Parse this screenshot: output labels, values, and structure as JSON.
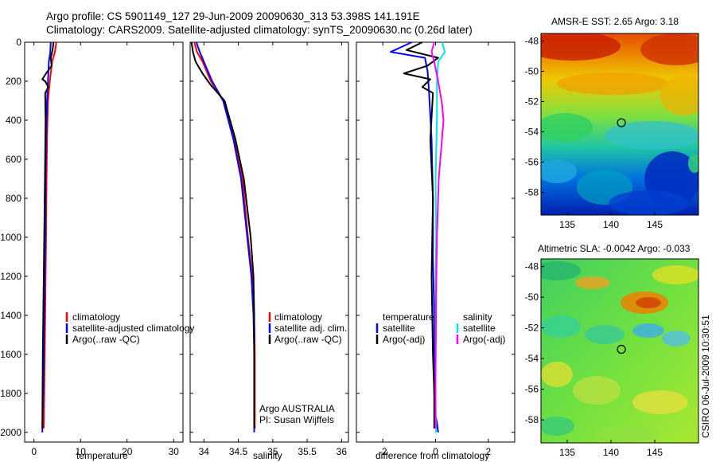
{
  "header": {
    "title_line1": "Argo profile: CS 5901149_127 29-Jun-2009 20090630_313 53.398S 141.191E",
    "title_line2": "Climatology: CARS2009. Satellite-adjusted climatology: synTS_20090630.nc (0.26d later)"
  },
  "footer_vertical": "CSIRO 06-Jul-2009 10:30:51",
  "colors": {
    "climatology": "#ff0000",
    "satellite": "#0000ff",
    "argo": "#000000",
    "cyan": "#00e5e5",
    "magenta": "#ff00ff"
  },
  "chart_data": [
    {
      "type": "line",
      "xlabel": "temperature",
      "ylabel": "",
      "xlim": [
        -2,
        32
      ],
      "ylim": [
        2050,
        0
      ],
      "x_ticks": [
        0,
        10,
        20,
        30
      ],
      "y_ticks": [
        0,
        200,
        400,
        600,
        800,
        1000,
        1200,
        1400,
        1600,
        1800,
        2000
      ],
      "legend": [
        "climatology",
        "satellite-adjusted climatology",
        "Argo(..raw -QC)"
      ],
      "legend_placement": "lower-left",
      "series": [
        {
          "name": "climatology",
          "color_key": "climatology",
          "x": [
            4.8,
            4.5,
            3.9,
            3.4,
            3.0,
            2.8,
            2.7,
            2.6,
            2.5,
            2.4,
            2.3,
            2.2,
            2.1
          ],
          "y": [
            0,
            50,
            100,
            200,
            300,
            500,
            700,
            1000,
            1200,
            1400,
            1600,
            1800,
            1980
          ]
        },
        {
          "name": "satellite-adjusted climatology",
          "color_key": "satellite",
          "x": [
            3.6,
            3.5,
            3.2,
            3.0,
            2.8,
            2.6,
            2.5,
            2.4,
            2.3,
            2.2,
            2.1,
            2.0,
            1.8
          ],
          "y": [
            0,
            50,
            100,
            200,
            300,
            500,
            700,
            1000,
            1200,
            1400,
            1600,
            1800,
            2000
          ]
        },
        {
          "name": "Argo(..raw -QC)",
          "color_key": "argo",
          "x": [
            4.2,
            4.0,
            3.6,
            3.8,
            2.6,
            1.8,
            2.4,
            3.1,
            2.4,
            2.5,
            2.3,
            2.1,
            1.9,
            1.8
          ],
          "y": [
            0,
            40,
            80,
            120,
            160,
            190,
            200,
            230,
            260,
            400,
            800,
            1200,
            1600,
            1980
          ]
        }
      ]
    },
    {
      "type": "line",
      "xlabel": "salinity",
      "xlim": [
        33.8,
        36.1
      ],
      "ylim": [
        2050,
        0
      ],
      "x_ticks": [
        34,
        34.5,
        35,
        35.5,
        36
      ],
      "legend": [
        "climatology",
        "satellite adj. clim.",
        "Argo(..raw -QC)"
      ],
      "legend_placement": "lower-right",
      "annotations": [
        "Argo AUSTRALIA",
        "PI: Susan Wijffels"
      ],
      "series": [
        {
          "name": "climatology",
          "color_key": "climatology",
          "x": [
            33.86,
            33.9,
            33.98,
            34.1,
            34.28,
            34.45,
            34.56,
            34.64,
            34.7,
            34.73,
            34.74,
            34.74,
            34.74
          ],
          "y": [
            0,
            50,
            100,
            200,
            300,
            500,
            700,
            1000,
            1200,
            1400,
            1600,
            1800,
            1980
          ]
        },
        {
          "name": "satellite adj. clim.",
          "color_key": "satellite",
          "x": [
            33.89,
            33.94,
            34.0,
            34.12,
            34.28,
            34.43,
            34.54,
            34.63,
            34.69,
            34.72,
            34.73,
            34.73,
            34.73
          ],
          "y": [
            0,
            50,
            100,
            200,
            300,
            500,
            700,
            1000,
            1200,
            1400,
            1600,
            1800,
            2000
          ]
        },
        {
          "name": "Argo(..raw -QC)",
          "color_key": "argo",
          "x": [
            33.82,
            33.84,
            33.88,
            33.98,
            34.1,
            34.3,
            34.46,
            34.58,
            34.68,
            34.72,
            34.73,
            34.73,
            34.73
          ],
          "y": [
            0,
            50,
            100,
            160,
            220,
            300,
            500,
            700,
            1000,
            1200,
            1400,
            1700,
            1980
          ]
        }
      ]
    },
    {
      "type": "line",
      "xlabel": "difference from climatology",
      "xlim": [
        -3,
        3
      ],
      "ylim": [
        2050,
        0
      ],
      "x_ticks": [
        -2,
        0,
        2
      ],
      "legend": [
        "temperature",
        "satellite",
        "Argo(-adj)",
        "salinity",
        "satellite",
        "Argo(-adj)"
      ],
      "legend_placement": "lower",
      "series": [
        {
          "name": "temperature satellite",
          "color_key": "satellite",
          "x": [
            -0.9,
            -1.7,
            -0.4,
            -0.3,
            -0.25,
            -0.15,
            -0.1,
            -0.1,
            -0.05,
            -0.05,
            -0.05,
            -0.02,
            0.05,
            0.1
          ],
          "y": [
            0,
            50,
            80,
            150,
            250,
            500,
            800,
            1100,
            1400,
            1600,
            1800,
            1900,
            1950,
            2000
          ]
        },
        {
          "name": "temperature Argo(-adj)",
          "color_key": "argo",
          "x": [
            -0.5,
            -1.1,
            0.1,
            -0.3,
            -1.2,
            -0.2,
            -0.5,
            -0.1,
            -0.2,
            -0.1,
            -0.15,
            -0.1,
            -0.05,
            -0.05
          ],
          "y": [
            0,
            40,
            80,
            120,
            160,
            190,
            230,
            260,
            500,
            800,
            1200,
            1600,
            1800,
            1980
          ]
        },
        {
          "name": "salinity satellite",
          "color_key": "cyan",
          "x": [
            0.25,
            0.35,
            0.1,
            0.05,
            0.05,
            0.0,
            0.02,
            0.0,
            0.0,
            0.0,
            0.02
          ],
          "y": [
            0,
            50,
            100,
            200,
            400,
            700,
            1000,
            1300,
            1600,
            1850,
            2000
          ]
        },
        {
          "name": "salinity Argo(-adj)",
          "color_key": "magenta",
          "x": [
            -0.05,
            -0.15,
            -0.05,
            0.1,
            0.25,
            0.3,
            0.12,
            0.05,
            0.02,
            0.0,
            0.0
          ],
          "y": [
            0,
            50,
            100,
            200,
            320,
            400,
            700,
            1000,
            1300,
            1700,
            1980
          ]
        }
      ]
    },
    {
      "type": "heatmap",
      "title": "AMSR-E SST: 2.65 Argo: 3.18",
      "xlim": [
        132,
        150
      ],
      "ylim": [
        -59.5,
        -47.5
      ],
      "x_ticks": [
        135,
        140,
        145
      ],
      "y_ticks": [
        -48,
        -50,
        -52,
        -54,
        -56,
        -58
      ],
      "marker": {
        "x": 141.191,
        "y": -53.398
      }
    },
    {
      "type": "heatmap",
      "title": "Altimetric SLA: -0.0042 Argo: -0.033",
      "xlim": [
        132,
        150
      ],
      "ylim": [
        -59.5,
        -47.5
      ],
      "x_ticks": [
        135,
        140,
        145
      ],
      "y_ticks": [
        -48,
        -50,
        -52,
        -54,
        -56,
        -58
      ],
      "marker": {
        "x": 141.191,
        "y": -53.398
      }
    }
  ]
}
